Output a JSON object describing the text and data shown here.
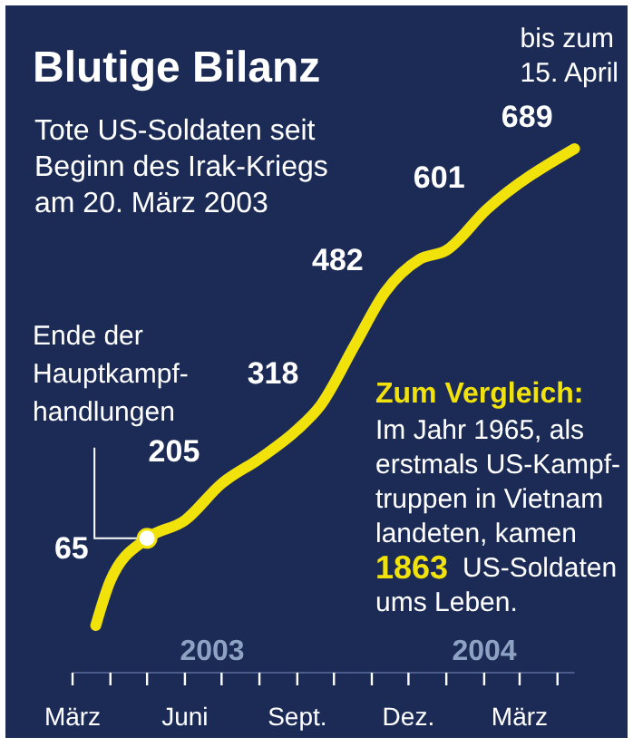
{
  "chart_data": {
    "type": "line",
    "title": "Blutige Bilanz",
    "subtitle": "Tote US-Soldaten seit\nBeginn des Irak-Kriegs\nam 20. März 2003",
    "x": [
      "2003-03-20",
      "2003-04-01",
      "2003-05-01",
      "2003-06-01",
      "2003-07-01",
      "2003-08-01",
      "2003-09-01",
      "2003-09-20",
      "2003-10-18",
      "2003-11-12",
      "2003-12-10",
      "2004-01-01",
      "2004-02-03",
      "2004-04-15"
    ],
    "values": [
      0,
      65,
      126,
      152,
      205,
      241,
      283,
      318,
      405,
      482,
      529,
      542,
      601,
      689
    ],
    "value_labels": [
      null,
      "65",
      null,
      null,
      "205",
      null,
      null,
      "318",
      null,
      "482",
      null,
      null,
      "601",
      "689"
    ],
    "color": "#f2e20c",
    "xlim": [
      "2003-03-01",
      "2004-04-15"
    ],
    "xticks": [
      {
        "value": "2003-03-01",
        "label": "März"
      },
      {
        "value": "2003-06-01",
        "label": "Juni"
      },
      {
        "value": "2003-09-01",
        "label": "Sept."
      },
      {
        "value": "2003-12-01",
        "label": "Dez."
      },
      {
        "value": "2004-03-01",
        "label": "März"
      }
    ],
    "annotations": [
      {
        "text": "bis zum\n15. April",
        "x": "2004-04-15",
        "y": 689
      },
      {
        "text": "Ende der\nHauptkampf-\nhandlungen",
        "x": "2003-05-01",
        "y": 126
      },
      "Zum Vergleich:",
      "Im Jahr 1965, als\nerstmals US-Kampf-\ntruppen in Vietnam\nlandeten, kamen",
      "1863",
      "US-Soldaten",
      "ums Leben.",
      "2003",
      "2004"
    ]
  }
}
